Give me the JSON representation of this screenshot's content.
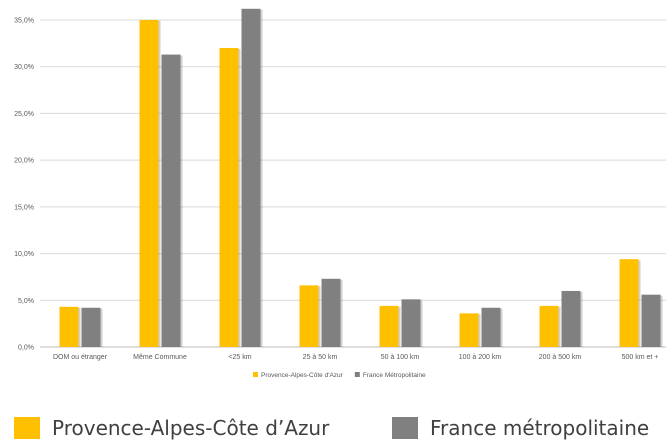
{
  "chart_data": {
    "type": "bar",
    "categories": [
      "DOM ou étranger",
      "Même Commune",
      "<25 km",
      "25 à 50 km",
      "50 à 100 km",
      "100 à 200 km",
      "200 à 500 km",
      "500 km et +"
    ],
    "series": [
      {
        "name": "Provence-Alpes-Côte d'Azur",
        "color": "#FFC000",
        "values": [
          4.3,
          35.0,
          32.0,
          6.6,
          4.4,
          3.6,
          4.4,
          9.4
        ]
      },
      {
        "name": "France Métropolitaine",
        "color": "#808080",
        "values": [
          4.2,
          31.3,
          36.2,
          7.3,
          5.1,
          4.2,
          6.0,
          5.6
        ]
      }
    ],
    "yticks": [
      "0,0%",
      "5,0%",
      "10,0%",
      "15,0%",
      "20,0%",
      "25,0%",
      "30,0%",
      "35,0%"
    ],
    "ylim": [
      0,
      35
    ],
    "grid": true,
    "legend_position": "bottom"
  },
  "bottom_legend": [
    {
      "label": "Provence-Alpes-Côte d’Azur",
      "color": "#FFC000"
    },
    {
      "label": "France métropolitaine",
      "color": "#808080"
    }
  ]
}
